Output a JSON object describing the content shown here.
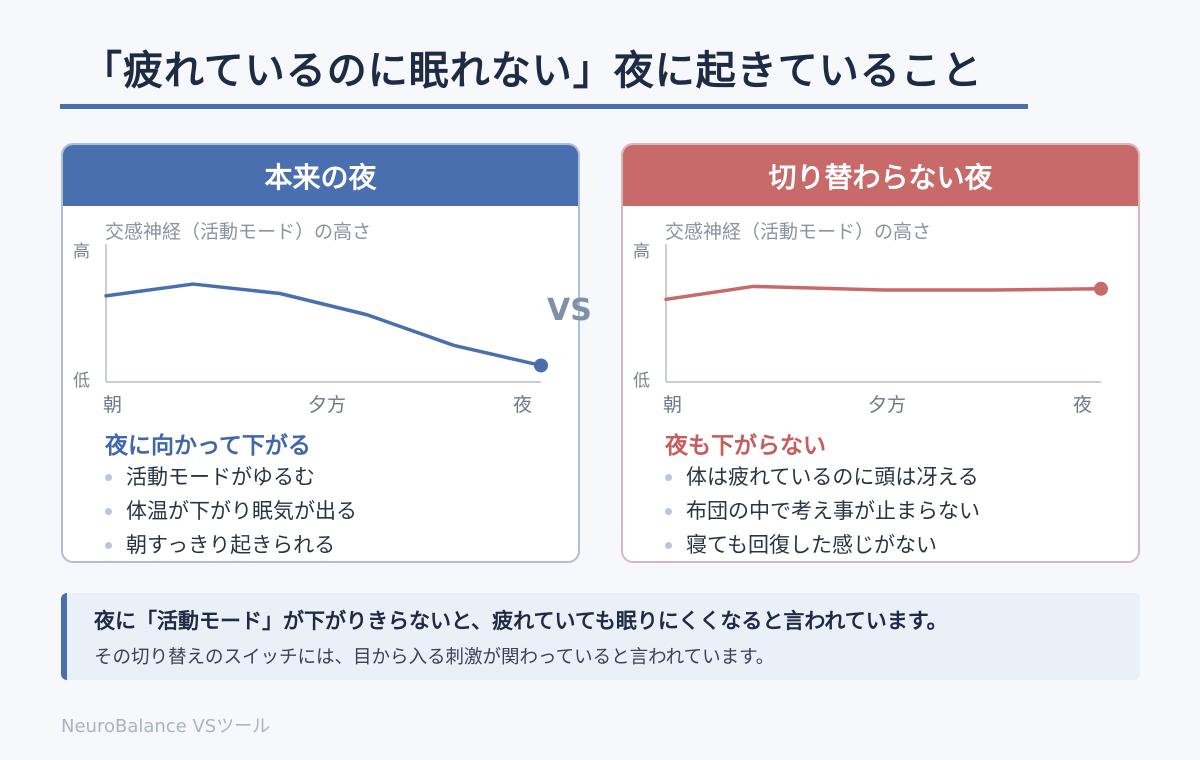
{
  "title": "「疲れているのに眠れない」夜に起きていること",
  "vs_label": "VS",
  "colors": {
    "accent_blue": "#4a6fae",
    "accent_red": "#c96a6a"
  },
  "panels": [
    {
      "header": "本来の夜",
      "caption": "夜に向かって下がる",
      "bullets": [
        "活動モードがゆるむ",
        "体温が下がり眠気が出る",
        "朝すっきり起きられる"
      ]
    },
    {
      "header": "切り替わらない夜",
      "caption": "夜も下がらない",
      "bullets": [
        "体は疲れているのに頭は冴える",
        "布団の中で考え事が止まらない",
        "寝ても回復した感じがない"
      ]
    }
  ],
  "note": {
    "main": "夜に「活動モード」が下がりきらないと、疲れていても眠りにくくなると言われています。",
    "sub": "その切り替えのスイッチには、目から入る刺激が関わっていると言われています。"
  },
  "footer": "NeuroBalance VSツール",
  "chart_data": [
    {
      "type": "line",
      "title": "交感神経（活動モード）の高さ",
      "x_ticks": [
        "朝",
        "夕方",
        "夜"
      ],
      "y_ticks": [
        "高",
        "低"
      ],
      "ylim": [
        0,
        1
      ],
      "series": [
        {
          "color": "#4a6fae",
          "x": [
            0,
            0.2,
            0.4,
            0.6,
            0.8,
            1.0
          ],
          "values": [
            0.73,
            0.83,
            0.75,
            0.57,
            0.31,
            0.14
          ]
        }
      ]
    },
    {
      "type": "line",
      "title": "交感神経（活動モード）の高さ",
      "x_ticks": [
        "朝",
        "夕方",
        "夜"
      ],
      "y_ticks": [
        "高",
        "低"
      ],
      "ylim": [
        0,
        1
      ],
      "series": [
        {
          "color": "#c96a6a",
          "x": [
            0,
            0.2,
            0.5,
            0.75,
            1.0
          ],
          "values": [
            0.7,
            0.81,
            0.78,
            0.78,
            0.79
          ]
        }
      ]
    }
  ]
}
